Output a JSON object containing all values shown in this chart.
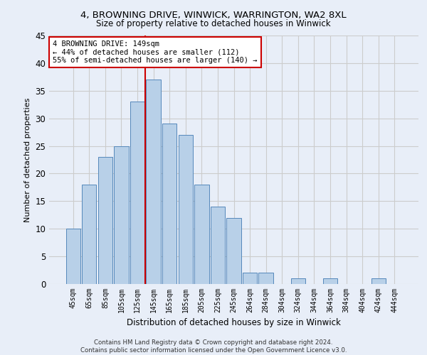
{
  "title_line1": "4, BROWNING DRIVE, WINWICK, WARRINGTON, WA2 8XL",
  "title_line2": "Size of property relative to detached houses in Winwick",
  "xlabel": "Distribution of detached houses by size in Winwick",
  "ylabel": "Number of detached properties",
  "footnote": "Contains HM Land Registry data © Crown copyright and database right 2024.\nContains public sector information licensed under the Open Government Licence v3.0.",
  "categories": [
    "45sqm",
    "65sqm",
    "85sqm",
    "105sqm",
    "125sqm",
    "145sqm",
    "165sqm",
    "185sqm",
    "205sqm",
    "225sqm",
    "245sqm",
    "264sqm",
    "284sqm",
    "304sqm",
    "324sqm",
    "344sqm",
    "364sqm",
    "384sqm",
    "404sqm",
    "424sqm",
    "444sqm"
  ],
  "values": [
    10,
    18,
    23,
    25,
    33,
    37,
    29,
    27,
    18,
    14,
    12,
    2,
    2,
    0,
    1,
    0,
    1,
    0,
    0,
    1,
    0
  ],
  "bar_color": "#b8d0e8",
  "bar_edge_color": "#5588bb",
  "vline_color": "#cc0000",
  "annotation_text": "4 BROWNING DRIVE: 149sqm\n← 44% of detached houses are smaller (112)\n55% of semi-detached houses are larger (140) →",
  "annotation_box_color": "#ffffff",
  "annotation_box_edge": "#cc0000",
  "background_color": "#e8eef8",
  "ylim": [
    0,
    45
  ],
  "yticks": [
    0,
    5,
    10,
    15,
    20,
    25,
    30,
    35,
    40,
    45
  ]
}
